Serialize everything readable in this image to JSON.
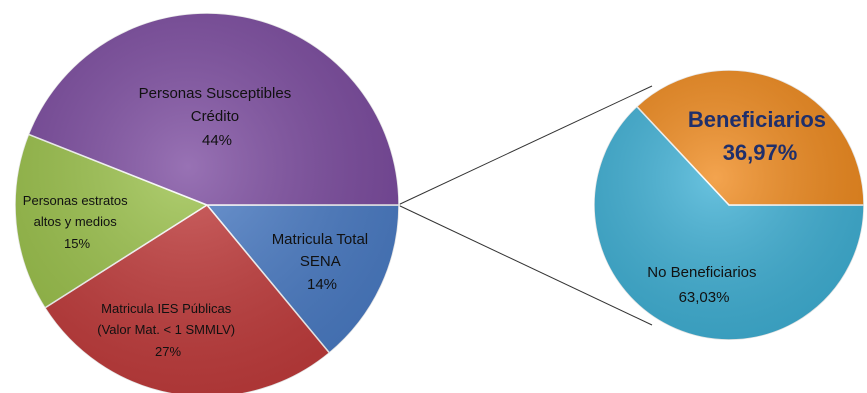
{
  "chart_data": [
    {
      "type": "pie",
      "slices": [
        {
          "label_lines": [
            "Personas Susceptibles",
            "Crédito"
          ],
          "percent_label": "44%",
          "value": 44,
          "color": "#7b4a9f"
        },
        {
          "label_lines": [
            "Matricula Total",
            "SENA"
          ],
          "percent_label": "14%",
          "value": 14,
          "color": "#4a7cc6"
        },
        {
          "label_lines": [
            "Matricula IES Públicas",
            "(Valor Mat. < 1 SMMLV)"
          ],
          "percent_label": "27%",
          "value": 27,
          "color": "#c23b3b"
        },
        {
          "label_lines": [
            "Personas estratos",
            "altos y medios"
          ],
          "percent_label": "15%",
          "value": 15,
          "color": "#9bc24a"
        }
      ]
    },
    {
      "type": "pie",
      "slices": [
        {
          "label_lines": [
            "Beneficiarios"
          ],
          "percent_label": "36,97%",
          "value": 36.97,
          "color": "#f08a1d"
        },
        {
          "label_lines": [
            "No Beneficiarios"
          ],
          "percent_label": "63,03%",
          "value": 63.03,
          "color": "#3fb1d6"
        }
      ]
    }
  ]
}
